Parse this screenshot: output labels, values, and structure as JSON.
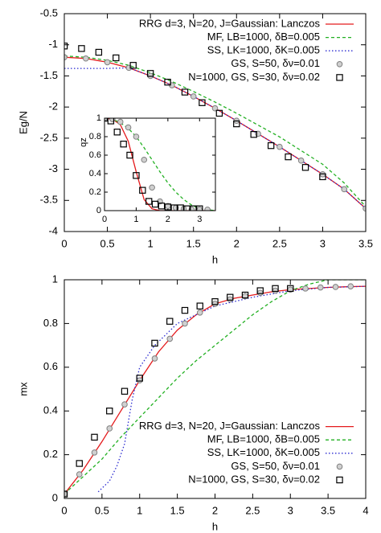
{
  "chart_data": [
    {
      "type": "line",
      "xlabel": "h",
      "ylabel": "Eg/N",
      "xlim": [
        0,
        3.5
      ],
      "ylim": [
        -4,
        -0.5
      ],
      "xticks": [
        0,
        0.5,
        1,
        1.5,
        2,
        2.5,
        3,
        3.5
      ],
      "yticks": [
        -4,
        -3.5,
        -3,
        -2.5,
        -2,
        -1.5,
        -1,
        -0.5
      ],
      "legend": "top right",
      "series": [
        {
          "name": "RRG d=3, N=20, J=Gaussian: Lanczos",
          "color": "#e41a1c",
          "style": "solid",
          "x": [
            0,
            0.25,
            0.5,
            0.75,
            1,
            1.25,
            1.5,
            1.75,
            2,
            2.25,
            2.5,
            2.75,
            3,
            3.25,
            3.5
          ],
          "values": [
            -1.2,
            -1.22,
            -1.28,
            -1.37,
            -1.5,
            -1.65,
            -1.83,
            -2.02,
            -2.22,
            -2.43,
            -2.64,
            -2.86,
            -3.08,
            -3.32,
            -3.63
          ]
        },
        {
          "name": "MF, LB=1000, δB=0.005",
          "color": "#22b022",
          "style": "dashed",
          "x": [
            0,
            0.25,
            0.5,
            0.75,
            1,
            1.25,
            1.5,
            1.75,
            2,
            2.25,
            2.5,
            2.75,
            3,
            3.25,
            3.5
          ],
          "values": [
            -1.18,
            -1.2,
            -1.25,
            -1.33,
            -1.45,
            -1.59,
            -1.75,
            -1.92,
            -2.1,
            -2.29,
            -2.48,
            -2.7,
            -2.92,
            -3.22,
            -3.6
          ]
        },
        {
          "name": "SS, LK=1000, δK=0.005",
          "color": "#2a2ad0",
          "style": "dotted",
          "x": [
            0,
            0.25,
            0.5,
            0.75,
            1,
            1.25,
            1.5,
            1.75,
            2,
            2.25,
            2.5,
            2.75,
            3,
            3.25,
            3.5
          ],
          "values": [
            -1.38,
            -1.38,
            -1.38,
            -1.37,
            -1.5,
            -1.65,
            -1.83,
            -2.02,
            -2.22,
            -2.43,
            -2.64,
            -2.86,
            -3.08,
            -3.32,
            -3.63
          ]
        },
        {
          "name": "GS, S=50, δν=0.01",
          "color": "#808080",
          "style": "circle",
          "x": [
            0,
            0.25,
            0.5,
            0.75,
            1,
            1.25,
            1.5,
            1.75,
            2,
            2.25,
            2.5,
            2.75,
            3,
            3.25,
            3.5
          ],
          "values": [
            -1.2,
            -1.22,
            -1.28,
            -1.37,
            -1.5,
            -1.65,
            -1.83,
            -2.02,
            -2.22,
            -2.43,
            -2.64,
            -2.86,
            -3.08,
            -3.32,
            -3.63
          ]
        },
        {
          "name": "N=1000, GS, S=30, δν=0.02",
          "color": "#000000",
          "style": "square",
          "x": [
            0,
            0.2,
            0.4,
            0.6,
            0.8,
            1,
            1.2,
            1.4,
            1.6,
            1.8,
            2,
            2.2,
            2.4,
            2.6,
            2.8,
            3
          ],
          "values": [
            -1.02,
            -1.06,
            -1.12,
            -1.21,
            -1.33,
            -1.46,
            -1.6,
            -1.76,
            -1.93,
            -2.1,
            -2.27,
            -2.44,
            -2.62,
            -2.8,
            -2.97,
            -3.12
          ]
        }
      ]
    },
    {
      "type": "line",
      "ylabel": "qz",
      "xlim": [
        0,
        3.5
      ],
      "ylim": [
        0,
        1
      ],
      "xticks": [
        0,
        1,
        2,
        3
      ],
      "yticks": [
        0,
        0.2,
        0.4,
        0.6,
        0.8,
        1
      ],
      "series": [
        {
          "color": "#e41a1c",
          "style": "solid",
          "x": [
            0,
            0.25,
            0.5,
            0.75,
            1,
            1.25,
            1.5,
            1.75,
            2,
            2.25,
            2.5,
            2.75,
            3,
            3.25,
            3.5
          ],
          "values": [
            1,
            0.99,
            0.93,
            0.75,
            0.42,
            0.12,
            0.02,
            0,
            0,
            0,
            0,
            0,
            0,
            0,
            0
          ]
        },
        {
          "color": "#22b022",
          "style": "dashed",
          "x": [
            0,
            0.25,
            0.5,
            0.75,
            1,
            1.25,
            1.5,
            1.75,
            2,
            2.25,
            2.5,
            2.75,
            3,
            3.25,
            3.5
          ],
          "values": [
            1,
            0.99,
            0.95,
            0.89,
            0.8,
            0.68,
            0.55,
            0.42,
            0.3,
            0.2,
            0.12,
            0.06,
            0.02,
            0.01,
            0
          ]
        },
        {
          "color": "#808080",
          "style": "circle",
          "x": [
            0,
            0.25,
            0.5,
            0.75,
            1,
            1.25,
            1.5,
            1.75,
            2,
            2.25,
            2.5,
            2.75,
            3,
            3.25
          ],
          "values": [
            1,
            0.99,
            0.96,
            0.9,
            0.8,
            0.55,
            0.25,
            0.1,
            0.05,
            0.03,
            0.02,
            0.01,
            0.01,
            0.01
          ]
        },
        {
          "color": "#000000",
          "style": "square",
          "x": [
            0,
            0.2,
            0.4,
            0.6,
            0.8,
            1,
            1.2,
            1.4,
            1.6,
            1.8,
            2,
            2.2,
            2.4,
            2.6,
            2.8,
            3
          ],
          "values": [
            1,
            0.97,
            0.85,
            0.72,
            0.6,
            0.38,
            0.22,
            0.1,
            0.07,
            0.05,
            0.04,
            0.03,
            0.03,
            0.02,
            0.02,
            0.02
          ]
        }
      ]
    },
    {
      "type": "line",
      "xlabel": "h",
      "ylabel": "mx",
      "xlim": [
        0,
        4
      ],
      "ylim": [
        0,
        1
      ],
      "xticks": [
        0,
        0.5,
        1,
        1.5,
        2,
        2.5,
        3,
        3.5,
        4
      ],
      "yticks": [
        0,
        0.2,
        0.4,
        0.6,
        0.8,
        1
      ],
      "legend": "bottom right",
      "series": [
        {
          "name": "RRG d=3, N=20, J=Gaussian: Lanczos",
          "color": "#e41a1c",
          "style": "solid",
          "x": [
            0,
            0.25,
            0.5,
            0.75,
            1,
            1.25,
            1.5,
            1.75,
            2,
            2.25,
            2.5,
            2.75,
            3,
            3.25,
            3.5,
            3.75,
            4
          ],
          "values": [
            0.02,
            0.13,
            0.26,
            0.4,
            0.54,
            0.67,
            0.77,
            0.84,
            0.89,
            0.915,
            0.93,
            0.945,
            0.955,
            0.96,
            0.965,
            0.968,
            0.97
          ]
        },
        {
          "name": "MF, LB=1000, δB=0.005",
          "color": "#22b022",
          "style": "dashed",
          "x": [
            0,
            0.25,
            0.5,
            0.75,
            1,
            1.25,
            1.5,
            1.75,
            2,
            2.25,
            2.5,
            2.75,
            3,
            3.25,
            3.5,
            3.75,
            4
          ],
          "values": [
            0.02,
            0.1,
            0.18,
            0.28,
            0.37,
            0.46,
            0.55,
            0.63,
            0.7,
            0.77,
            0.84,
            0.9,
            0.95,
            0.98,
            1,
            1,
            1
          ]
        },
        {
          "name": "SS, LK=1000, δK=0.005",
          "color": "#2a2ad0",
          "style": "dotted",
          "x": [
            0.45,
            0.6,
            0.7,
            0.8,
            0.9,
            1,
            1.2,
            1.5,
            2,
            2.5,
            3,
            3.5,
            4
          ],
          "values": [
            0.03,
            0.08,
            0.15,
            0.25,
            0.45,
            0.6,
            0.7,
            0.8,
            0.88,
            0.92,
            0.95,
            0.965,
            0.97
          ]
        },
        {
          "name": "GS, S=50, δν=0.01",
          "color": "#808080",
          "style": "circle",
          "x": [
            0,
            0.2,
            0.4,
            0.6,
            0.8,
            1,
            1.2,
            1.4,
            1.6,
            1.8,
            2,
            2.2,
            2.4,
            2.6,
            2.8,
            3,
            3.2,
            3.4,
            3.6,
            3.8
          ],
          "values": [
            0.02,
            0.11,
            0.21,
            0.32,
            0.43,
            0.54,
            0.64,
            0.73,
            0.8,
            0.85,
            0.89,
            0.91,
            0.925,
            0.94,
            0.95,
            0.955,
            0.96,
            0.965,
            0.967,
            0.97
          ]
        },
        {
          "name": "N=1000, GS, S=30, δν=0.02",
          "color": "#000000",
          "style": "square",
          "x": [
            0,
            0.2,
            0.4,
            0.6,
            0.8,
            1,
            1.2,
            1.4,
            1.6,
            1.8,
            2,
            2.2,
            2.4,
            2.6,
            2.8,
            3
          ],
          "values": [
            0.02,
            0.16,
            0.28,
            0.4,
            0.49,
            0.55,
            0.71,
            0.81,
            0.86,
            0.88,
            0.9,
            0.92,
            0.93,
            0.95,
            0.96,
            0.96
          ]
        }
      ]
    }
  ]
}
